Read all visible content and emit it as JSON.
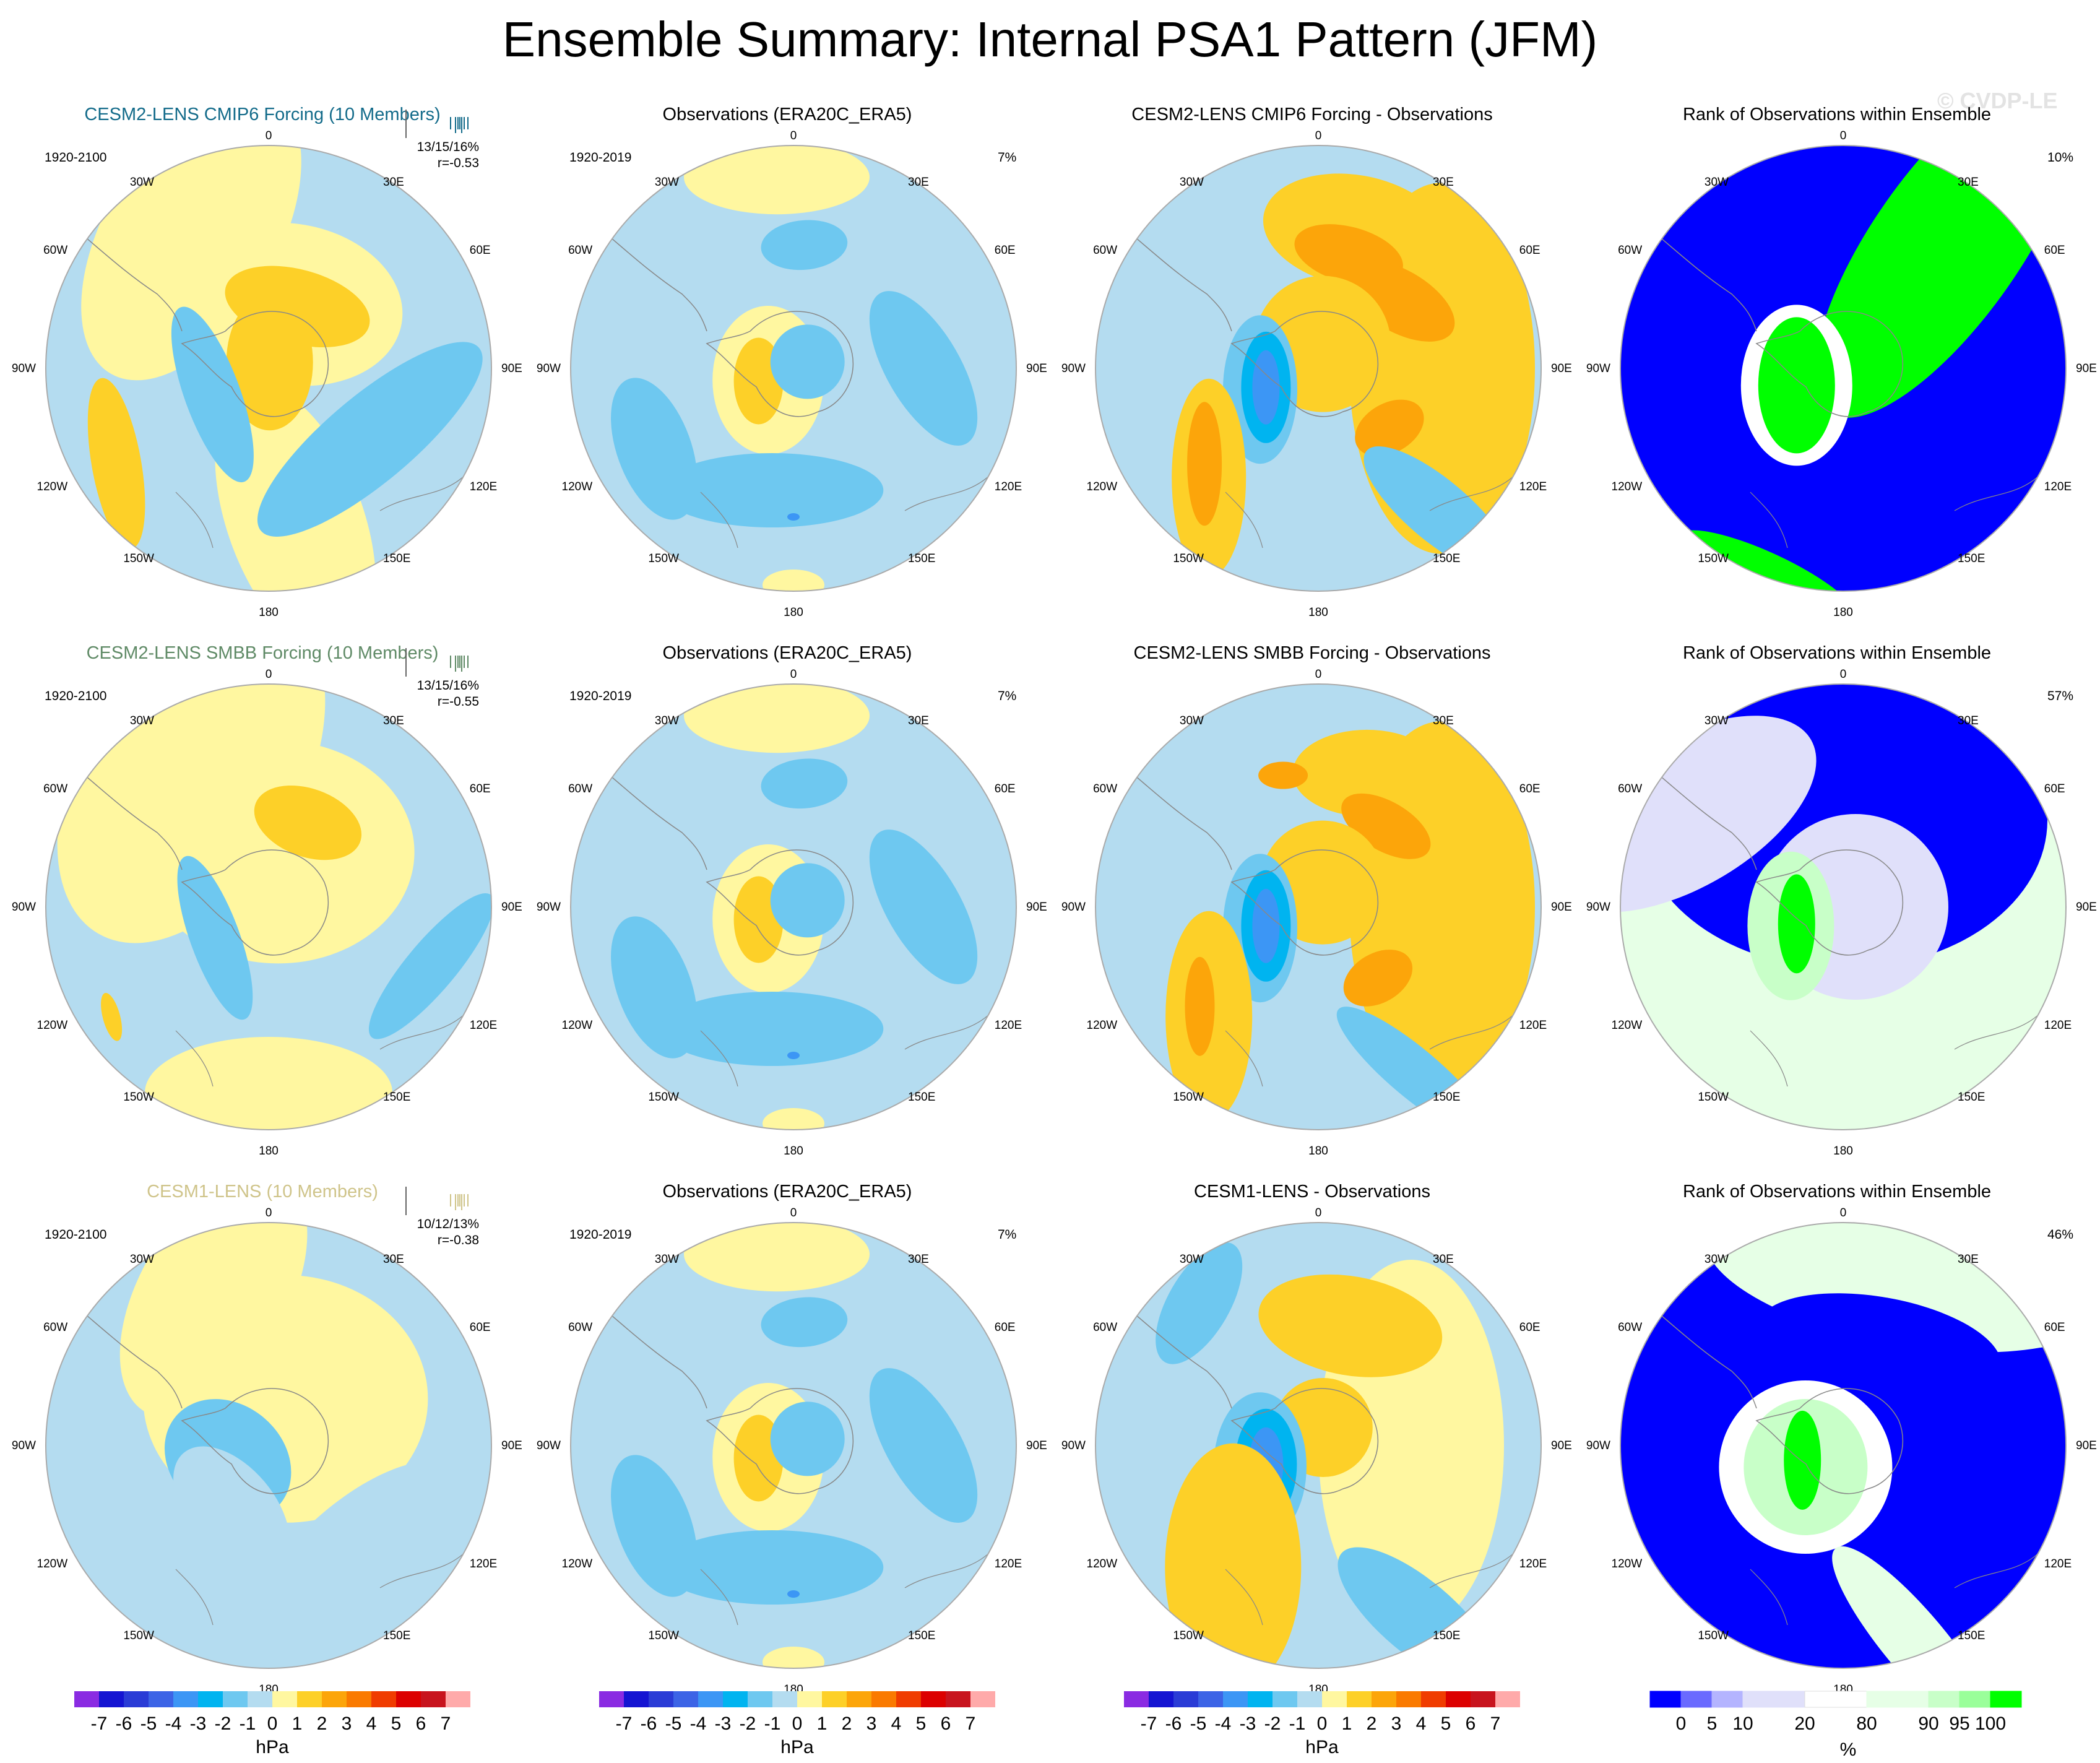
{
  "title": "Ensemble Summary: Internal PSA1 Pattern (JFM)",
  "watermark": "© CVDP-LE",
  "lon_labels": {
    "0": "0",
    "30W": "30W",
    "30E": "30E",
    "60W": "60W",
    "60E": "60E",
    "90W": "90W",
    "90E": "90E",
    "120W": "120W",
    "120E": "120E",
    "150W": "150W",
    "150E": "150E",
    "180": "180"
  },
  "rows": [
    {
      "ensemble": {
        "title": "CESM2-LENS CMIP6 Forcing (10 Members)",
        "title_color": "#136b8a",
        "period": "1920-2100",
        "stats": "13/15/16%",
        "r": "r=-0.53"
      },
      "obs": {
        "title": "Observations (ERA20C_ERA5)",
        "period": "1920-2019",
        "pct": "7%"
      },
      "diff": {
        "title": "CESM2-LENS CMIP6 Forcing - Observations"
      },
      "rank": {
        "title": "Rank of Observations within Ensemble",
        "pct": "10%"
      }
    },
    {
      "ensemble": {
        "title": "CESM2-LENS SMBB Forcing (10 Members)",
        "title_color": "#5f8a66",
        "period": "1920-2100",
        "stats": "13/15/16%",
        "r": "r=-0.55"
      },
      "obs": {
        "title": "Observations (ERA20C_ERA5)",
        "period": "1920-2019",
        "pct": "7%"
      },
      "diff": {
        "title": "CESM2-LENS SMBB Forcing - Observations"
      },
      "rank": {
        "title": "Rank of Observations within Ensemble",
        "pct": "57%"
      }
    },
    {
      "ensemble": {
        "title": "CESM1-LENS (10 Members)",
        "title_color": "#cfc48a",
        "period": "1920-2100",
        "stats": "10/12/13%",
        "r": "r=-0.38"
      },
      "obs": {
        "title": "Observations (ERA20C_ERA5)",
        "period": "1920-2019",
        "pct": "7%"
      },
      "diff": {
        "title": "CESM1-LENS - Observations"
      },
      "rank": {
        "title": "Rank of Observations within Ensemble",
        "pct": "46%"
      }
    }
  ],
  "colorbar_hpa": {
    "unit": "hPa",
    "ticks": [
      "-7",
      "-6",
      "-5",
      "-4",
      "-3",
      "-2",
      "-1",
      "0",
      "1",
      "2",
      "3",
      "4",
      "5",
      "6",
      "7"
    ],
    "colors": [
      "#8a2be2",
      "#1414d2",
      "#2a3cd6",
      "#3c64e6",
      "#3c96f5",
      "#00b4f0",
      "#6ec8f0",
      "#b4dcf0",
      "#fff7a0",
      "#fdd028",
      "#fca50a",
      "#fa7a00",
      "#f03c00",
      "#dc0000",
      "#c8141e",
      "#ffaaaa"
    ]
  },
  "colorbar_rank": {
    "unit": "%",
    "ticks": [
      "0",
      "5",
      "10",
      "20",
      "80",
      "90",
      "95",
      "100"
    ],
    "colors": [
      "#0000ff",
      "#6a6aff",
      "#b4b4ff",
      "#e0e0fa",
      "#ffffff",
      "#e6ffe6",
      "#c8ffc8",
      "#9aff9a",
      "#00ff00"
    ]
  },
  "palette": {
    "land_line": "#888888",
    "circle_edge": "#aaaaaa"
  }
}
